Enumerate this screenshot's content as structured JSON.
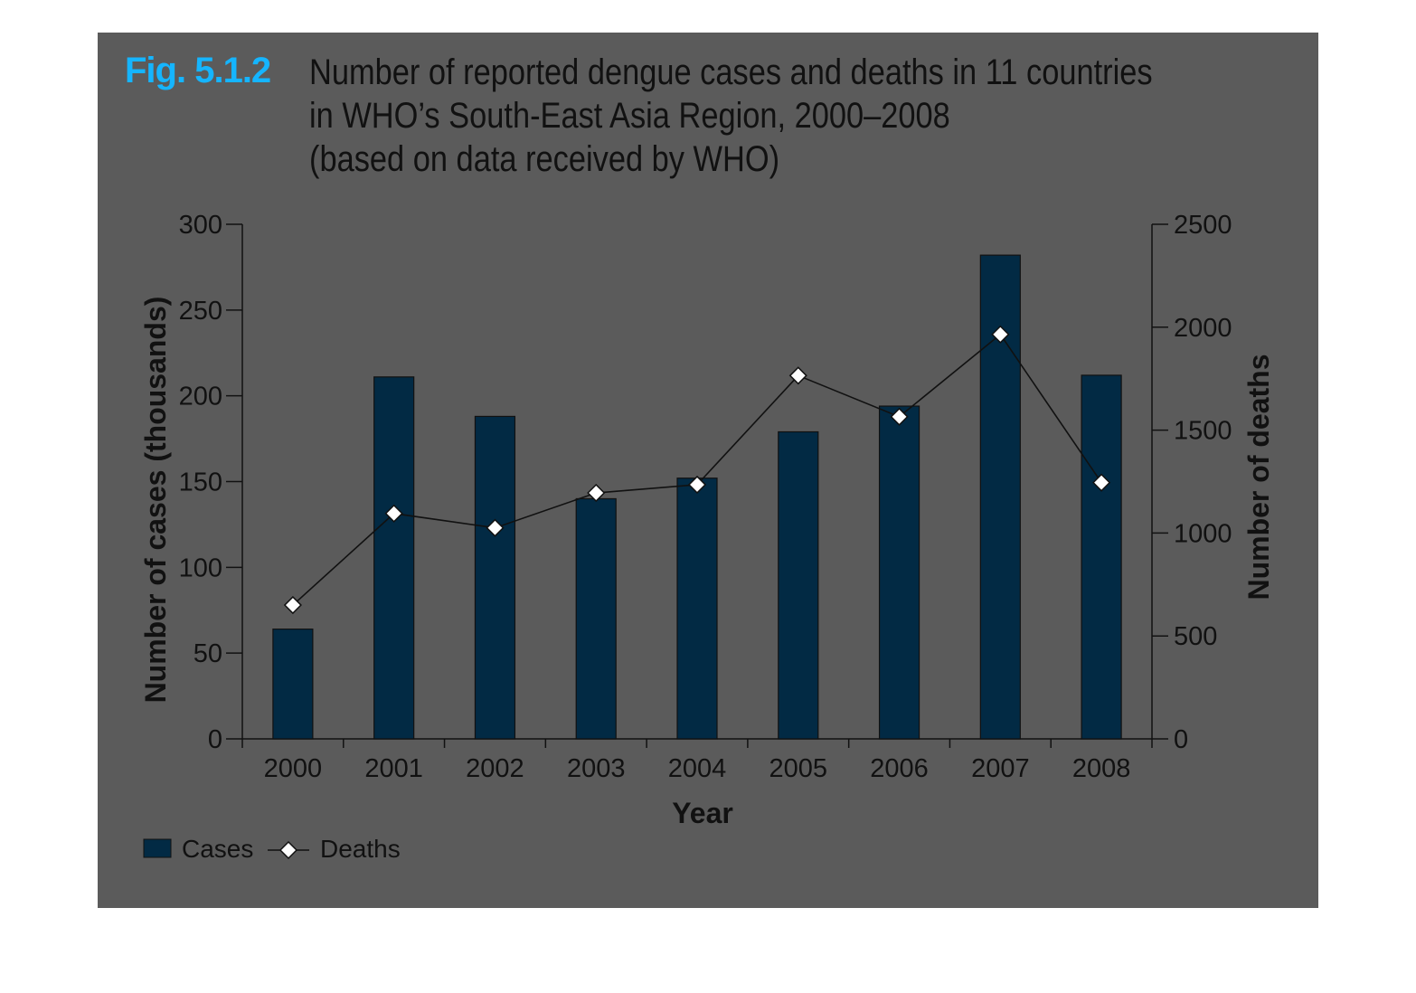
{
  "figure": {
    "label": "Fig. 5.1.2",
    "title_lines": [
      "Number of reported dengue cases and deaths in 11 countries",
      "in WHO’s South-East Asia Region, 2000–2008",
      "(based on data received by WHO)"
    ]
  },
  "colors": {
    "bar": "#022a44",
    "line": "#111111",
    "marker_fill": "#ffffff",
    "background": "#5b5b5b",
    "label_accent": "#15b5ff"
  },
  "chart_data": {
    "type": "bar",
    "categories": [
      "2000",
      "2001",
      "2002",
      "2003",
      "2004",
      "2005",
      "2006",
      "2007",
      "2008"
    ],
    "series": [
      {
        "name": "Cases",
        "type": "bar",
        "axis": "left",
        "values": [
          64,
          211,
          188,
          140,
          152,
          179,
          194,
          282,
          212
        ]
      },
      {
        "name": "Deaths",
        "type": "line",
        "axis": "right",
        "marker": "diamond",
        "values": [
          650,
          1095,
          1025,
          1195,
          1235,
          1765,
          1565,
          1965,
          1245
        ]
      }
    ],
    "xlabel": "Year",
    "ylabel": "Number of cases (thousands)",
    "y2label": "Number of deaths",
    "ylim": [
      0,
      300
    ],
    "y2lim": [
      0,
      2500
    ],
    "yticks": [
      0,
      50,
      100,
      150,
      200,
      250,
      300
    ],
    "y2ticks": [
      0,
      500,
      1000,
      1500,
      2000,
      2500
    ],
    "grid": false,
    "legend_position": "bottom-left"
  }
}
